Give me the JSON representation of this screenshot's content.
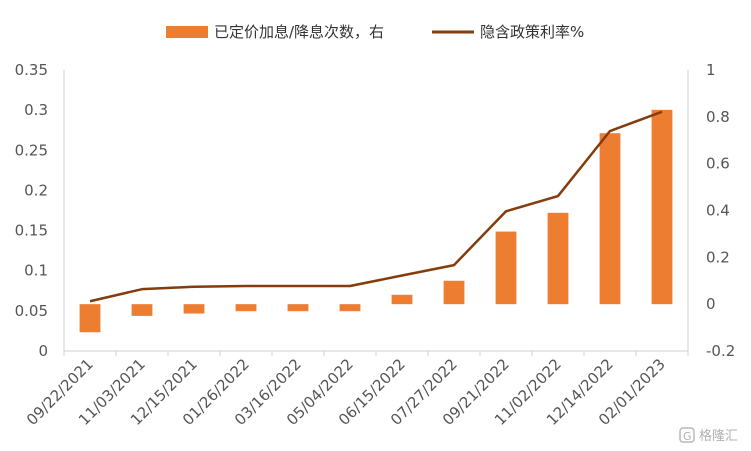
{
  "chart_data": {
    "type": "bar+line",
    "categories": [
      "09/22/2021",
      "11/03/2021",
      "12/15/2021",
      "01/26/2022",
      "03/16/2022",
      "05/04/2022",
      "06/15/2022",
      "07/27/2022",
      "09/21/2022",
      "11/02/2022",
      "12/14/2022",
      "02/01/2023"
    ],
    "series": [
      {
        "name": "已定价加息/降息次数，右",
        "kind": "bar",
        "axis": "right",
        "color": "#ED7D31",
        "values": [
          -0.12,
          -0.05,
          -0.04,
          -0.03,
          -0.03,
          -0.03,
          0.04,
          0.1,
          0.31,
          0.39,
          0.73,
          0.83
        ]
      },
      {
        "name": "隐含政策利率%",
        "kind": "line",
        "axis": "left",
        "color": "#843C0C",
        "values": [
          0.062,
          0.077,
          0.08,
          0.081,
          0.081,
          0.081,
          0.094,
          0.107,
          0.174,
          0.193,
          0.274,
          0.298
        ]
      }
    ],
    "left_axis": {
      "ylim": [
        0,
        0.35
      ],
      "ticks": [
        0,
        0.05,
        0.1,
        0.15,
        0.2,
        0.25,
        0.3,
        0.35
      ],
      "tick_labels": [
        "0",
        "0.05",
        "0.1",
        "0.15",
        "0.2",
        "0.25",
        "0.3",
        "0.35"
      ]
    },
    "right_axis": {
      "ylim": [
        -0.2,
        1.0
      ],
      "ticks": [
        -0.2,
        0,
        0.2,
        0.4,
        0.6,
        0.8,
        1.0
      ],
      "tick_labels": [
        "-0.2",
        "0",
        "0.2",
        "0.4",
        "0.6",
        "0.8",
        "1"
      ]
    },
    "legend_position": "top",
    "grid": false
  },
  "watermark": {
    "text": "格隆汇",
    "icon": "g-logo-icon"
  }
}
